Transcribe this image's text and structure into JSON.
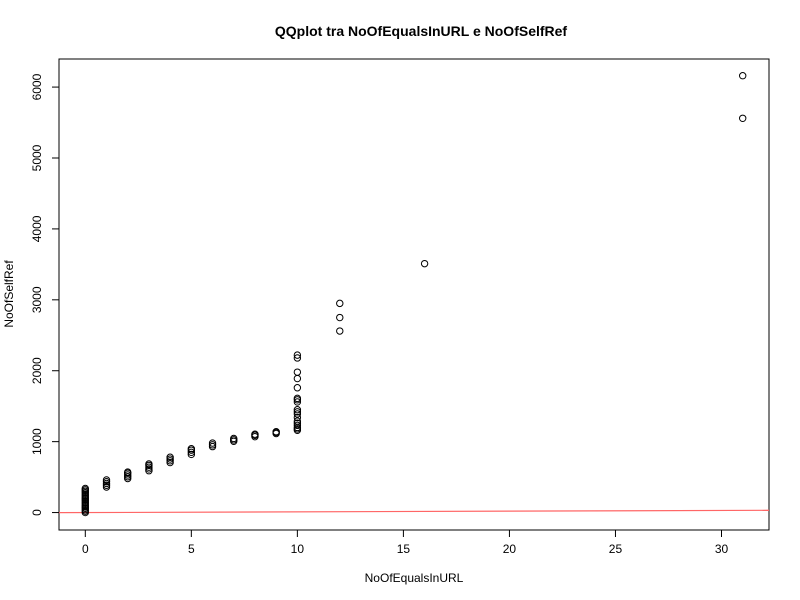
{
  "chart_data": {
    "type": "scatter",
    "title": "QQplot tra NoOfEqualsInURL e NoOfSelfRef",
    "xlabel": "NoOfEqualsInURL",
    "ylabel": "NoOfSelfRef",
    "xlim": [
      -1.24,
      32.24
    ],
    "ylim": [
      -246,
      6396
    ],
    "x_ticks": [
      0,
      5,
      10,
      15,
      20,
      25,
      30
    ],
    "y_ticks": [
      0,
      1000,
      2000,
      3000,
      4000,
      5000,
      6000
    ],
    "grid": false,
    "points": [
      {
        "x": 0,
        "y": 0
      },
      {
        "x": 0,
        "y": 20
      },
      {
        "x": 0,
        "y": 40
      },
      {
        "x": 0,
        "y": 60
      },
      {
        "x": 0,
        "y": 80
      },
      {
        "x": 0,
        "y": 100
      },
      {
        "x": 0,
        "y": 120
      },
      {
        "x": 0,
        "y": 140
      },
      {
        "x": 0,
        "y": 160
      },
      {
        "x": 0,
        "y": 180
      },
      {
        "x": 0,
        "y": 200
      },
      {
        "x": 0,
        "y": 220
      },
      {
        "x": 0,
        "y": 240
      },
      {
        "x": 0,
        "y": 260
      },
      {
        "x": 0,
        "y": 280
      },
      {
        "x": 0,
        "y": 300
      },
      {
        "x": 0,
        "y": 320
      },
      {
        "x": 0,
        "y": 340
      },
      {
        "x": 1,
        "y": 360
      },
      {
        "x": 1,
        "y": 385
      },
      {
        "x": 1,
        "y": 410
      },
      {
        "x": 1,
        "y": 435
      },
      {
        "x": 1,
        "y": 460
      },
      {
        "x": 2,
        "y": 480
      },
      {
        "x": 2,
        "y": 505
      },
      {
        "x": 2,
        "y": 530
      },
      {
        "x": 2,
        "y": 555
      },
      {
        "x": 2,
        "y": 570
      },
      {
        "x": 3,
        "y": 590
      },
      {
        "x": 3,
        "y": 615
      },
      {
        "x": 3,
        "y": 640
      },
      {
        "x": 3,
        "y": 665
      },
      {
        "x": 3,
        "y": 685
      },
      {
        "x": 4,
        "y": 705
      },
      {
        "x": 4,
        "y": 730
      },
      {
        "x": 4,
        "y": 755
      },
      {
        "x": 4,
        "y": 780
      },
      {
        "x": 5,
        "y": 820
      },
      {
        "x": 5,
        "y": 850
      },
      {
        "x": 5,
        "y": 880
      },
      {
        "x": 5,
        "y": 900
      },
      {
        "x": 6,
        "y": 930
      },
      {
        "x": 6,
        "y": 955
      },
      {
        "x": 6,
        "y": 980
      },
      {
        "x": 7,
        "y": 1005
      },
      {
        "x": 7,
        "y": 1025
      },
      {
        "x": 7,
        "y": 1045
      },
      {
        "x": 8,
        "y": 1070
      },
      {
        "x": 8,
        "y": 1090
      },
      {
        "x": 8,
        "y": 1105
      },
      {
        "x": 9,
        "y": 1115
      },
      {
        "x": 9,
        "y": 1130
      },
      {
        "x": 9,
        "y": 1140
      },
      {
        "x": 10,
        "y": 1160
      },
      {
        "x": 10,
        "y": 1180
      },
      {
        "x": 10,
        "y": 1200
      },
      {
        "x": 10,
        "y": 1230
      },
      {
        "x": 10,
        "y": 1260
      },
      {
        "x": 10,
        "y": 1290
      },
      {
        "x": 10,
        "y": 1340
      },
      {
        "x": 10,
        "y": 1390
      },
      {
        "x": 10,
        "y": 1420
      },
      {
        "x": 10,
        "y": 1450
      },
      {
        "x": 10,
        "y": 1560
      },
      {
        "x": 10,
        "y": 1590
      },
      {
        "x": 10,
        "y": 1610
      },
      {
        "x": 10,
        "y": 1760
      },
      {
        "x": 10,
        "y": 1890
      },
      {
        "x": 10,
        "y": 1980
      },
      {
        "x": 10,
        "y": 2180
      },
      {
        "x": 10,
        "y": 2220
      },
      {
        "x": 12,
        "y": 2560
      },
      {
        "x": 12,
        "y": 2750
      },
      {
        "x": 12,
        "y": 2950
      },
      {
        "x": 16,
        "y": 3510
      },
      {
        "x": 31,
        "y": 5560
      },
      {
        "x": 31,
        "y": 6160
      }
    ],
    "reference_line": {
      "x": [
        -1.24,
        32.24
      ],
      "y": [
        -1.24,
        32.24
      ],
      "color": "#ff6666"
    }
  }
}
